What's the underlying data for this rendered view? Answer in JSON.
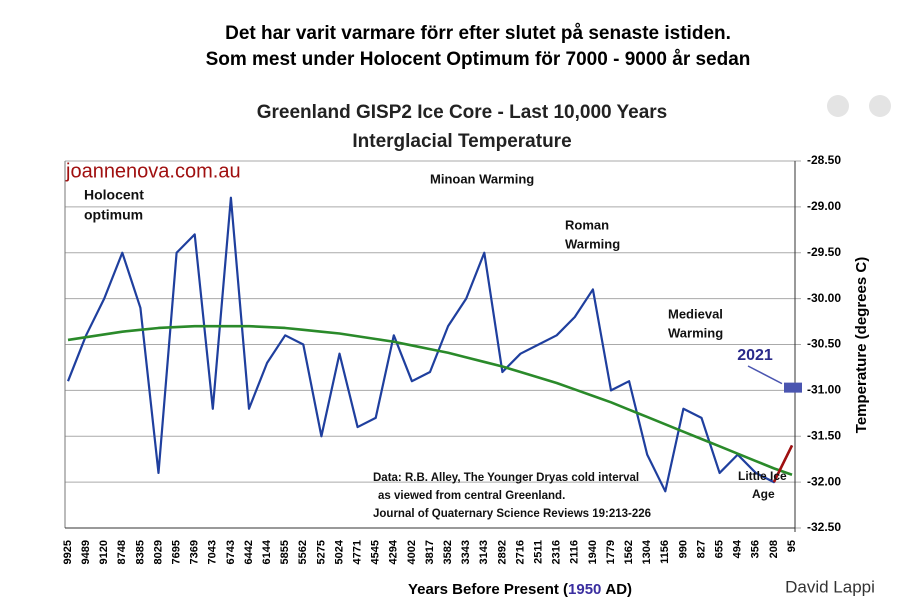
{
  "header": {
    "lines": [
      "Det har varit varmare förr efter slutet på senaste istiden.",
      "Som mest under Holocent Optimum för 7000 - 9000 år sedan"
    ]
  },
  "chart_data": {
    "type": "line",
    "title": [
      "Greenland GISP2 Ice Core - Last 10,000 Years",
      "Interglacial Temperature"
    ],
    "x_label": [
      "Years Before Present (",
      "1950",
      "AD)"
    ],
    "y_label": "Temperature (degrees C)",
    "categories": [
      "9925",
      "9489",
      "9120",
      "8748",
      "8385",
      "8029",
      "7695",
      "7369",
      "7043",
      "6743",
      "6442",
      "6144",
      "5855",
      "5562",
      "5275",
      "5024",
      "4771",
      "4545",
      "4294",
      "4002",
      "3817",
      "3582",
      "3343",
      "3143",
      "2892",
      "2716",
      "2511",
      "2316",
      "2116",
      "1940",
      "1779",
      "1562",
      "1304",
      "1156",
      "990",
      "827",
      "655",
      "494",
      "356",
      "208",
      "95"
    ],
    "series": [
      {
        "color": "#1f3f9e",
        "values": [
          -30.9,
          -30.4,
          -30.0,
          -29.5,
          -30.1,
          -31.9,
          -29.5,
          -29.3,
          -31.2,
          -28.9,
          -31.2,
          -30.7,
          -30.4,
          -30.5,
          -31.5,
          -30.6,
          -31.4,
          -31.3,
          -30.4,
          -30.9,
          -30.8,
          -30.3,
          -30.0,
          -29.5,
          -30.8,
          -30.6,
          -30.5,
          -30.4,
          -30.2,
          -29.9,
          -31.0,
          -30.9,
          -31.7,
          -32.1,
          -31.2,
          -31.3,
          -31.9,
          -31.7,
          -31.9,
          -32.0,
          -31.6
        ]
      },
      {
        "color": "#2a8a2a",
        "values": [
          -30.45,
          -30.42,
          -30.39,
          -30.36,
          -30.34,
          -30.32,
          -30.31,
          -30.3,
          -30.3,
          -30.3,
          -30.3,
          -30.31,
          -30.32,
          -30.34,
          -30.36,
          -30.38,
          -30.41,
          -30.44,
          -30.47,
          -30.51,
          -30.55,
          -30.59,
          -30.64,
          -30.69,
          -30.74,
          -30.8,
          -30.86,
          -30.92,
          -30.99,
          -31.06,
          -31.13,
          -31.21,
          -31.29,
          -31.37,
          -31.45,
          -31.53,
          -31.61,
          -31.69,
          -31.77,
          -31.85,
          -31.92
        ]
      }
    ],
    "recent_color": "#a01010",
    "marker_2021": {
      "label": "2021",
      "value": -30.97,
      "color": "#4a55b0"
    },
    "ylim": [
      -32.5,
      -28.5
    ],
    "yticks": [
      {
        "value": -28.5,
        "label": "-28.50"
      },
      {
        "value": -29,
        "label": "-29.00"
      },
      {
        "value": -29.5,
        "label": "-29.50"
      },
      {
        "value": -30,
        "label": "-30.00"
      },
      {
        "value": -30.5,
        "label": "-30.50"
      },
      {
        "value": -31,
        "label": "-31.00"
      },
      {
        "value": -31.5,
        "label": "-31.50"
      },
      {
        "value": -32,
        "label": "-32.00"
      },
      {
        "value": -32.5,
        "label": "-32.50"
      }
    ],
    "grid": true,
    "annotations": [
      "joannenova.com.au",
      "Holocent",
      "optimum",
      "Minoan Warming",
      "Roman",
      "Warming",
      "Medieval",
      "Warming",
      "Little Ice",
      "Age",
      "Data: R.B. Alley,  The Younger Dryas cold interval",
      "as viewed from central Greenland.",
      "Journal of Quaternary  Science Reviews 19:213-226"
    ],
    "credit": "David Lappi"
  }
}
